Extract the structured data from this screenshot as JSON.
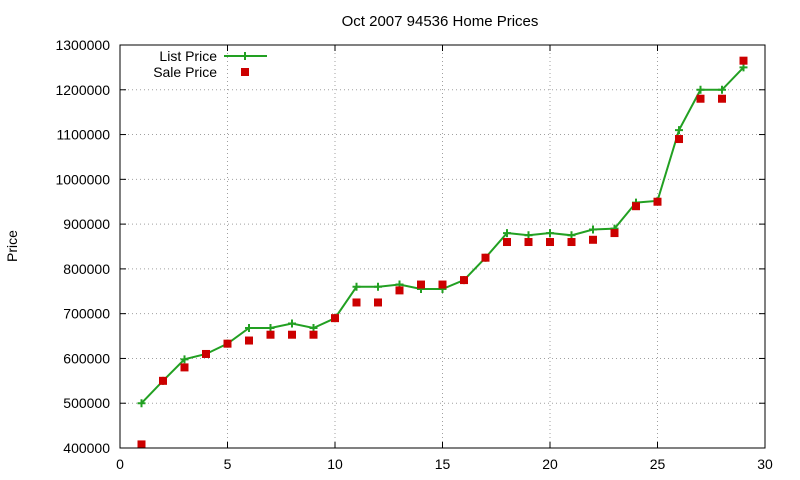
{
  "chart_data": {
    "type": "line",
    "title": "Oct 2007 94536 Home Prices",
    "xlabel": "",
    "ylabel": "Price",
    "xlim": [
      0,
      30
    ],
    "ylim": [
      400000,
      1300000
    ],
    "x_ticks": [
      0,
      5,
      10,
      15,
      20,
      25,
      30
    ],
    "y_ticks": [
      400000,
      500000,
      600000,
      700000,
      800000,
      900000,
      1000000,
      1100000,
      1200000,
      1300000
    ],
    "grid": true,
    "legend_position": "top-left",
    "series": [
      {
        "name": "List Price",
        "style": "line-plus",
        "color": "#22a022",
        "x": [
          1,
          2,
          3,
          4,
          5,
          6,
          7,
          8,
          9,
          10,
          11,
          12,
          13,
          14,
          15,
          16,
          17,
          18,
          19,
          20,
          21,
          22,
          23,
          24,
          25,
          26,
          27,
          28,
          29
        ],
        "values": [
          500000,
          550000,
          598000,
          610000,
          633000,
          668000,
          668000,
          678000,
          668000,
          690000,
          760000,
          760000,
          765000,
          755000,
          755000,
          775000,
          825000,
          880000,
          875000,
          880000,
          875000,
          888000,
          890000,
          948000,
          952000,
          1110000,
          1200000,
          1200000,
          1250000
        ]
      },
      {
        "name": "Sale Price",
        "style": "square",
        "color": "#cc0000",
        "x": [
          1,
          2,
          3,
          4,
          5,
          6,
          7,
          8,
          9,
          10,
          11,
          12,
          13,
          14,
          15,
          16,
          17,
          18,
          19,
          20,
          21,
          22,
          23,
          24,
          25,
          26,
          27,
          28,
          29
        ],
        "values": [
          408000,
          550000,
          580000,
          610000,
          633000,
          640000,
          653000,
          653000,
          653000,
          690000,
          725000,
          725000,
          752000,
          765000,
          765000,
          775000,
          825000,
          860000,
          860000,
          860000,
          860000,
          865000,
          880000,
          940000,
          950000,
          1090000,
          1180000,
          1180000,
          1265000
        ]
      }
    ]
  }
}
